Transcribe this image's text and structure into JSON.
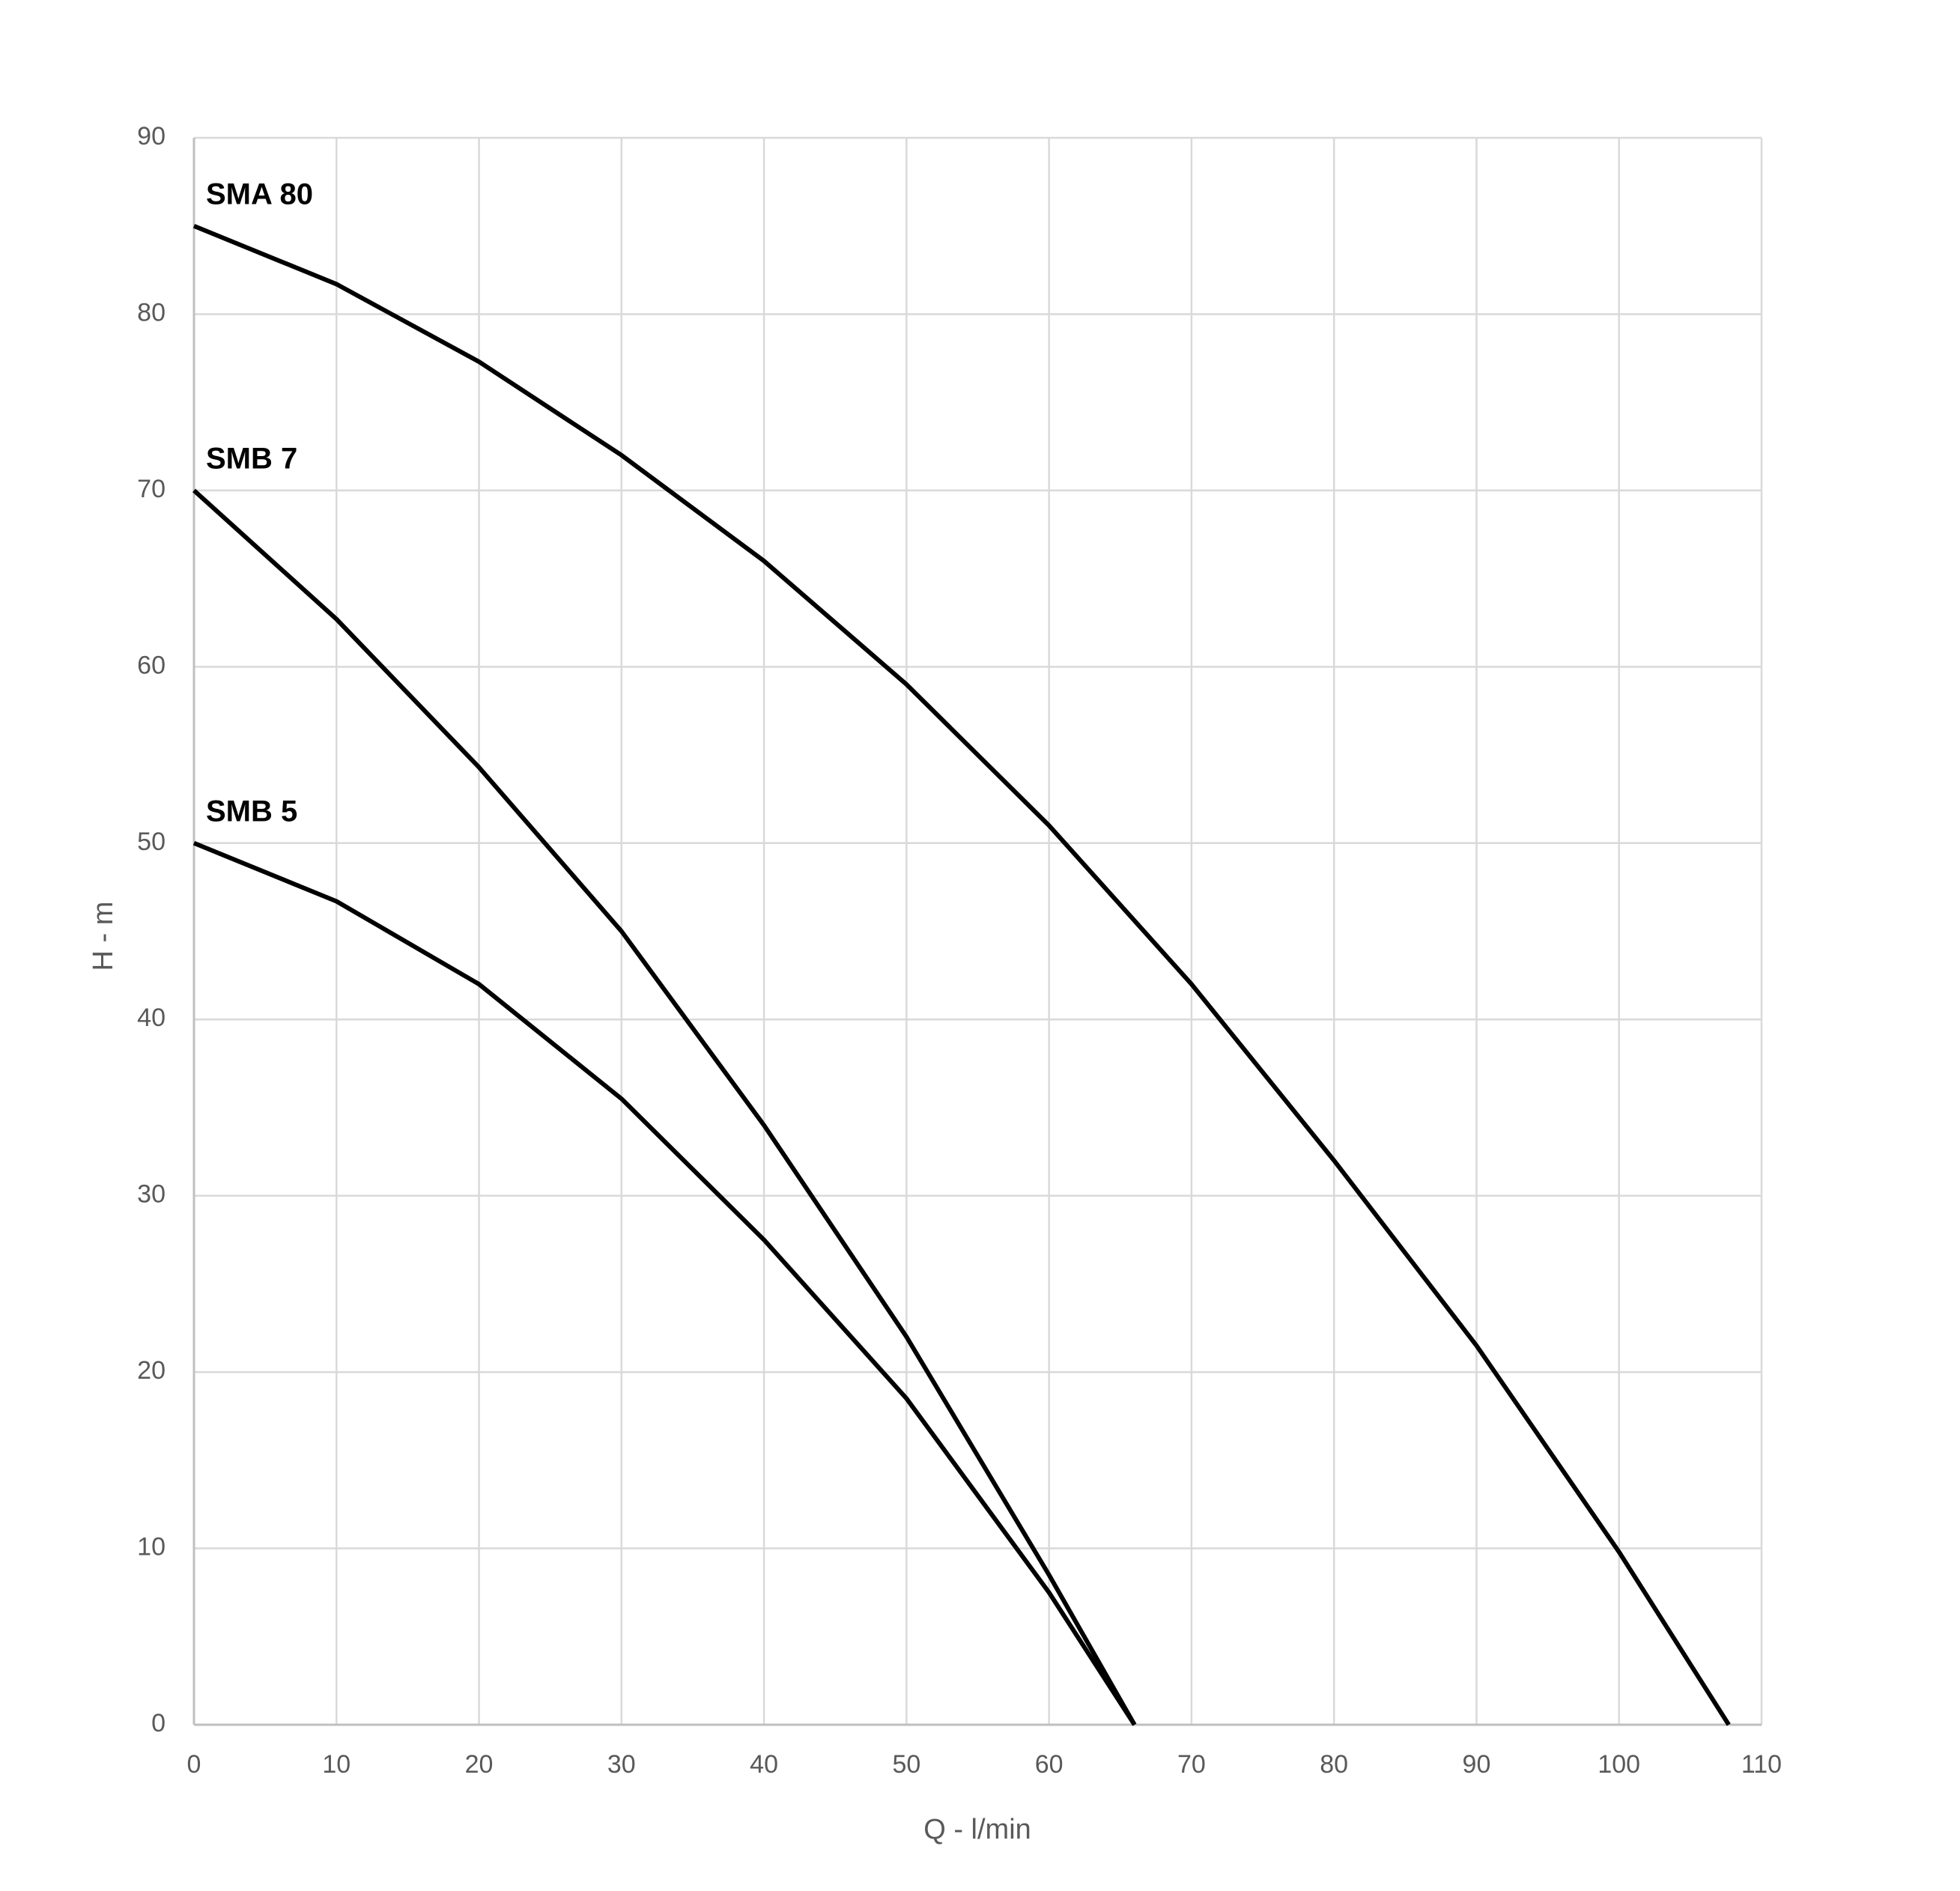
{
  "chart_data": {
    "type": "line",
    "xlabel": "Q - l/min",
    "ylabel": "H - m",
    "xlim": [
      0,
      110
    ],
    "xticks": [
      0,
      10,
      20,
      30,
      40,
      50,
      60,
      70,
      80,
      90,
      100,
      110
    ],
    "ylim": [
      0,
      90
    ],
    "yticks": [
      0,
      10,
      20,
      30,
      40,
      50,
      60,
      70,
      80,
      90
    ],
    "grid": true,
    "series": [
      {
        "name": "SMA 80",
        "color": "#000000",
        "x": [
          0,
          10,
          20,
          30,
          40,
          50,
          60,
          70,
          80,
          90,
          100,
          107.7
        ],
        "values": [
          85,
          81.7,
          77.3,
          72,
          66,
          59,
          51,
          42,
          32,
          21.5,
          9.8,
          0
        ]
      },
      {
        "name": "SMB 7",
        "color": "#000000",
        "x": [
          0,
          10,
          20,
          30,
          40,
          50,
          60,
          66
        ],
        "values": [
          70,
          62.7,
          54.3,
          45,
          34,
          22,
          8.5,
          0
        ]
      },
      {
        "name": "SMB 5",
        "color": "#000000",
        "x": [
          0,
          10,
          20,
          30,
          40,
          50,
          60,
          66
        ],
        "values": [
          50,
          46.7,
          42,
          35.5,
          27.5,
          18.5,
          7.5,
          0
        ]
      }
    ]
  }
}
